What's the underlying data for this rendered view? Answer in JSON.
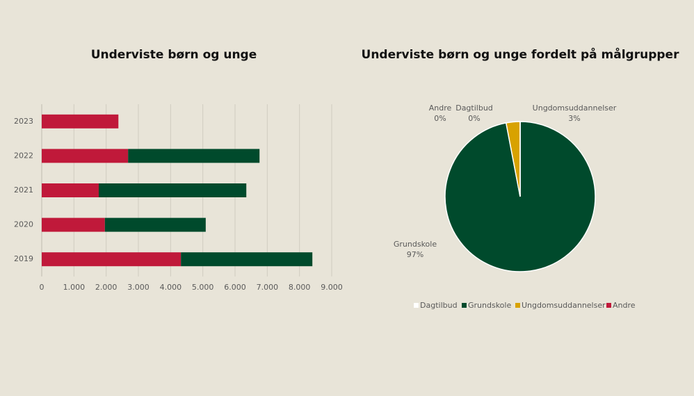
{
  "chart_data": [
    {
      "type": "stacked_barh",
      "title": "Underviste børn og unge",
      "categories": [
        "2023",
        "2022",
        "2021",
        "2020",
        "2019"
      ],
      "series": [
        {
          "color": "#c0193a",
          "values": [
            2380,
            2680,
            1770,
            1960,
            4320
          ]
        },
        {
          "color": "#004a2c",
          "values": [
            0,
            4080,
            4580,
            3130,
            4080
          ]
        }
      ],
      "xlim": [
        0,
        9000
      ],
      "xticks": [
        0,
        {
          "value": 1000,
          "label": "1.000"
        },
        {
          "value": 2000,
          "label": "2.000"
        },
        {
          "value": 3000,
          "label": "3.000"
        },
        {
          "value": 4000,
          "label": "4.000"
        },
        {
          "value": 5000,
          "label": "5.000"
        },
        {
          "value": 6000,
          "label": "6.000"
        },
        {
          "value": 7000,
          "label": "7.000"
        },
        {
          "value": 8000,
          "label": "8.000"
        },
        {
          "value": 9000,
          "label": "9.000"
        }
      ],
      "grid": true
    },
    {
      "type": "pie",
      "title": "Underviste børn og unge fordelt på målgrupper",
      "categories": [
        "Dagtilbud",
        "Grundskole",
        "Ungdomsuddannelser",
        "Andre"
      ],
      "values": [
        0,
        97,
        3,
        0
      ],
      "value_labels": [
        "0%",
        "97%",
        "3%",
        "0%"
      ],
      "colors": [
        "#ffffff",
        "#004a2c",
        "#d8a200",
        "#c0193a"
      ],
      "legend": "bottom"
    }
  ]
}
